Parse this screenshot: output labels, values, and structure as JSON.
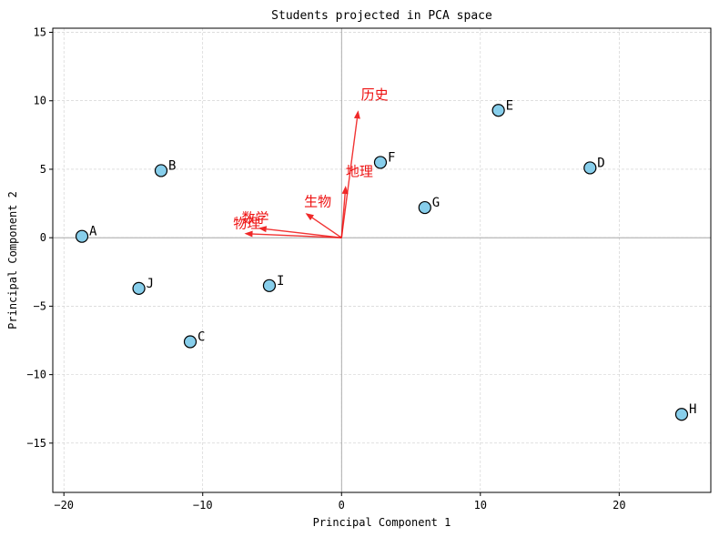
{
  "chart_data": {
    "type": "scatter",
    "title": "Students projected in PCA space",
    "xlabel": "Principal Component 1",
    "ylabel": "Principal Component 2",
    "xlim": [
      -20.8,
      26.6
    ],
    "ylim": [
      -18.6,
      15.3
    ],
    "xticks": [
      -20,
      -10,
      0,
      10,
      20
    ],
    "yticks": [
      -15,
      -10,
      -5,
      0,
      5,
      10,
      15
    ],
    "grid": true,
    "point_color": "#87ceeb",
    "vector_color": "#ee1111",
    "points": [
      {
        "label": "A",
        "x": -18.7,
        "y": 0.1
      },
      {
        "label": "B",
        "x": -13.0,
        "y": 4.9
      },
      {
        "label": "C",
        "x": -10.9,
        "y": -7.6
      },
      {
        "label": "D",
        "x": 17.9,
        "y": 5.1
      },
      {
        "label": "E",
        "x": 11.3,
        "y": 9.3
      },
      {
        "label": "F",
        "x": 2.8,
        "y": 5.5
      },
      {
        "label": "G",
        "x": 6.0,
        "y": 2.2
      },
      {
        "label": "H",
        "x": 24.5,
        "y": -12.9
      },
      {
        "label": "I",
        "x": -5.2,
        "y": -3.5
      },
      {
        "label": "J",
        "x": -14.6,
        "y": -3.7
      }
    ],
    "vectors": [
      {
        "label": "历史",
        "x": 1.2,
        "y": 9.3,
        "lx": 1.4,
        "ly": 10.1
      },
      {
        "label": "地理",
        "x": 0.3,
        "y": 3.8,
        "lx": 0.3,
        "ly": 4.5
      },
      {
        "label": "生物",
        "x": -2.6,
        "y": 1.8,
        "lx": -2.7,
        "ly": 2.3
      },
      {
        "label": "数学",
        "x": -6.0,
        "y": 0.7,
        "lx": -7.2,
        "ly": 1.1
      },
      {
        "label": "物理",
        "x": -7.0,
        "y": 0.3,
        "lx": -7.8,
        "ly": 0.7
      }
    ]
  }
}
